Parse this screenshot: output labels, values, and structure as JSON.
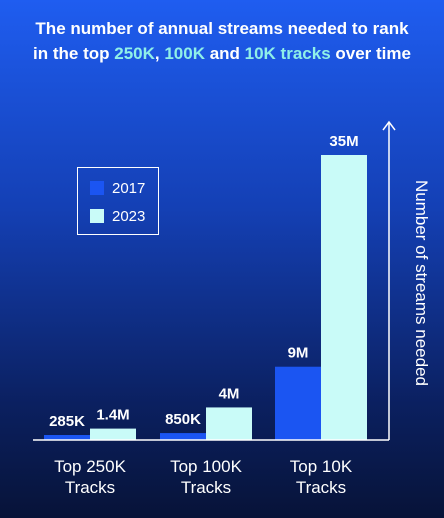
{
  "title": {
    "line1": "The number of annual streams needed to rank",
    "line2_parts": [
      {
        "text": "in the top ",
        "highlight": false
      },
      {
        "text": "250K",
        "highlight": true
      },
      {
        "text": ", ",
        "highlight": false
      },
      {
        "text": "100K",
        "highlight": true
      },
      {
        "text": " and ",
        "highlight": false
      },
      {
        "text": "10K tracks",
        "highlight": true
      },
      {
        "text": " over time",
        "highlight": false
      }
    ]
  },
  "colors": {
    "series_2017": "#1b55f2",
    "series_2023": "#c9fbf8",
    "highlight": "#8ff0e8",
    "axis": "#ffffff"
  },
  "chart_data": {
    "type": "bar",
    "title": "The number of annual streams needed to rank in the top 250K, 100K and 10K tracks over time",
    "categories": [
      "Top 250K Tracks",
      "Top 100K Tracks",
      "Top 10K Tracks"
    ],
    "category_lines": [
      [
        "Top 250K",
        "Tracks"
      ],
      [
        "Top 100K",
        "Tracks"
      ],
      [
        "Top 10K",
        "Tracks"
      ]
    ],
    "series": [
      {
        "name": "2017",
        "values": [
          285000,
          850000,
          9000000
        ],
        "labels": [
          "285K",
          "850K",
          "9M"
        ]
      },
      {
        "name": "2023",
        "values": [
          1400000,
          4000000,
          35000000
        ],
        "labels": [
          "1.4M",
          "4M",
          "35M"
        ]
      }
    ],
    "ylabel": "Number of streams needed",
    "xlabel": "",
    "legend_position": "upper-left",
    "grid": false,
    "y_tick_labels": false
  }
}
